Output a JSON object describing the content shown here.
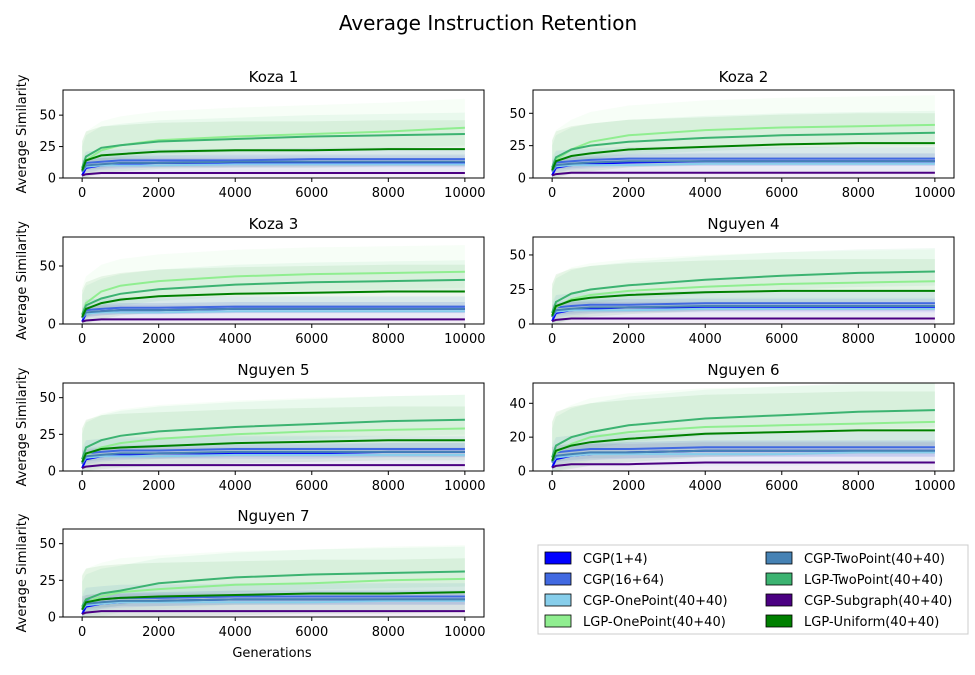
{
  "figure": {
    "title": "Average Instruction Retention",
    "xlabel": "Generations",
    "ylabel": "Average Similarity"
  },
  "legend": {
    "entries": [
      {
        "label": "CGP(1+4)",
        "color": "#0000ff"
      },
      {
        "label": "CGP-TwoPoint(40+40)",
        "color": "#4682b4"
      },
      {
        "label": "CGP(16+64)",
        "color": "#4169e1"
      },
      {
        "label": "LGP-TwoPoint(40+40)",
        "color": "#3cb371"
      },
      {
        "label": "CGP-OnePoint(40+40)",
        "color": "#87ceeb"
      },
      {
        "label": "CGP-Subgraph(40+40)",
        "color": "#4b0082"
      },
      {
        "label": "LGP-OnePoint(40+40)",
        "color": "#90ee90"
      },
      {
        "label": "LGP-Uniform(40+40)",
        "color": "#008000"
      }
    ]
  },
  "chart_data": [
    {
      "type": "line",
      "title": "Koza 1",
      "xlabel": "",
      "ylabel": "Average Similarity",
      "x": [
        0,
        100,
        500,
        1000,
        2000,
        4000,
        6000,
        8000,
        10000
      ],
      "xlim": [
        -500,
        10500
      ],
      "ylim": [
        0,
        70
      ],
      "xticks": [
        "0",
        "2000",
        "4000",
        "6000",
        "8000",
        "10000"
      ],
      "yticks": [
        0,
        25,
        50
      ],
      "series": [
        {
          "name": "CGP(1+4)",
          "color": "#0000ff",
          "values": [
            2,
            8,
            10,
            11,
            12,
            12,
            12,
            12,
            12
          ]
        },
        {
          "name": "CGP(16+64)",
          "color": "#4169e1",
          "values": [
            5,
            12,
            13,
            14,
            14,
            14,
            15,
            15,
            15
          ]
        },
        {
          "name": "CGP-OnePoint(40+40)",
          "color": "#87ceeb",
          "values": [
            5,
            9,
            10,
            10,
            10,
            11,
            11,
            11,
            11
          ]
        },
        {
          "name": "LGP-OnePoint(40+40)",
          "color": "#90ee90",
          "values": [
            7,
            14,
            22,
            26,
            30,
            33,
            35,
            37,
            40
          ]
        },
        {
          "name": "CGP-TwoPoint(40+40)",
          "color": "#4682b4",
          "values": [
            5,
            10,
            11,
            12,
            12,
            13,
            13,
            13,
            13
          ]
        },
        {
          "name": "LGP-TwoPoint(40+40)",
          "color": "#3cb371",
          "values": [
            8,
            17,
            24,
            26,
            29,
            31,
            33,
            34,
            35
          ]
        },
        {
          "name": "CGP-Subgraph(40+40)",
          "color": "#4b0082",
          "values": [
            2,
            3,
            4,
            4,
            4,
            4,
            4,
            4,
            4
          ]
        },
        {
          "name": "LGP-Uniform(40+40)",
          "color": "#008000",
          "values": [
            6,
            14,
            18,
            19,
            21,
            22,
            22,
            23,
            23
          ]
        }
      ]
    },
    {
      "type": "line",
      "title": "Koza 2",
      "xlabel": "",
      "ylabel": "",
      "x": [
        0,
        100,
        500,
        1000,
        2000,
        4000,
        6000,
        8000,
        10000
      ],
      "xlim": [
        -500,
        10500
      ],
      "ylim": [
        0,
        68
      ],
      "xticks": [
        "0",
        "2000",
        "4000",
        "6000",
        "8000",
        "10000"
      ],
      "yticks": [
        0,
        25,
        50
      ],
      "series": [
        {
          "name": "CGP(1+4)",
          "color": "#0000ff",
          "values": [
            2,
            8,
            10,
            11,
            12,
            13,
            13,
            13,
            13
          ]
        },
        {
          "name": "CGP(16+64)",
          "color": "#4169e1",
          "values": [
            5,
            12,
            13,
            14,
            15,
            15,
            15,
            15,
            15
          ]
        },
        {
          "name": "CGP-OnePoint(40+40)",
          "color": "#87ceeb",
          "values": [
            5,
            9,
            10,
            10,
            10,
            11,
            11,
            11,
            11
          ]
        },
        {
          "name": "LGP-OnePoint(40+40)",
          "color": "#90ee90",
          "values": [
            7,
            14,
            22,
            28,
            33,
            37,
            39,
            40,
            41
          ]
        },
        {
          "name": "CGP-TwoPoint(40+40)",
          "color": "#4682b4",
          "values": [
            5,
            10,
            11,
            12,
            13,
            13,
            13,
            13,
            13
          ]
        },
        {
          "name": "LGP-TwoPoint(40+40)",
          "color": "#3cb371",
          "values": [
            8,
            16,
            22,
            25,
            28,
            31,
            33,
            34,
            35
          ]
        },
        {
          "name": "CGP-Subgraph(40+40)",
          "color": "#4b0082",
          "values": [
            2,
            3,
            4,
            4,
            4,
            4,
            4,
            4,
            4
          ]
        },
        {
          "name": "LGP-Uniform(40+40)",
          "color": "#008000",
          "values": [
            6,
            13,
            17,
            19,
            22,
            24,
            26,
            27,
            27
          ]
        }
      ]
    },
    {
      "type": "line",
      "title": "Koza 3",
      "xlabel": "",
      "ylabel": "Average Similarity",
      "x": [
        0,
        100,
        500,
        1000,
        2000,
        4000,
        6000,
        8000,
        10000
      ],
      "xlim": [
        -500,
        10500
      ],
      "ylim": [
        0,
        75
      ],
      "xticks": [
        "0",
        "2000",
        "4000",
        "6000",
        "8000",
        "10000"
      ],
      "yticks": [
        0,
        50
      ],
      "series": [
        {
          "name": "CGP(1+4)",
          "color": "#0000ff",
          "values": [
            2,
            9,
            11,
            12,
            12,
            13,
            13,
            13,
            13
          ]
        },
        {
          "name": "CGP(16+64)",
          "color": "#4169e1",
          "values": [
            5,
            12,
            13,
            14,
            14,
            15,
            15,
            15,
            15
          ]
        },
        {
          "name": "CGP-OnePoint(40+40)",
          "color": "#87ceeb",
          "values": [
            5,
            9,
            10,
            10,
            10,
            11,
            11,
            11,
            11
          ]
        },
        {
          "name": "LGP-OnePoint(40+40)",
          "color": "#90ee90",
          "values": [
            8,
            18,
            28,
            33,
            37,
            41,
            43,
            44,
            45
          ]
        },
        {
          "name": "CGP-TwoPoint(40+40)",
          "color": "#4682b4",
          "values": [
            5,
            10,
            11,
            12,
            12,
            13,
            13,
            13,
            13
          ]
        },
        {
          "name": "LGP-TwoPoint(40+40)",
          "color": "#3cb371",
          "values": [
            8,
            16,
            22,
            26,
            30,
            34,
            36,
            37,
            38
          ]
        },
        {
          "name": "CGP-Subgraph(40+40)",
          "color": "#4b0082",
          "values": [
            2,
            3,
            4,
            4,
            4,
            4,
            4,
            4,
            4
          ]
        },
        {
          "name": "LGP-Uniform(40+40)",
          "color": "#008000",
          "values": [
            6,
            13,
            18,
            21,
            24,
            26,
            27,
            28,
            28
          ]
        }
      ]
    },
    {
      "type": "line",
      "title": "Nguyen 4",
      "xlabel": "",
      "ylabel": "",
      "x": [
        0,
        100,
        500,
        1000,
        2000,
        4000,
        6000,
        8000,
        10000
      ],
      "xlim": [
        -500,
        10500
      ],
      "ylim": [
        0,
        63
      ],
      "xticks": [
        "0",
        "2000",
        "4000",
        "6000",
        "8000",
        "10000"
      ],
      "yticks": [
        0,
        25,
        50
      ],
      "series": [
        {
          "name": "CGP(1+4)",
          "color": "#0000ff",
          "values": [
            2,
            8,
            10,
            11,
            12,
            12,
            12,
            12,
            12
          ]
        },
        {
          "name": "CGP(16+64)",
          "color": "#4169e1",
          "values": [
            5,
            12,
            13,
            14,
            14,
            15,
            15,
            15,
            15
          ]
        },
        {
          "name": "CGP-OnePoint(40+40)",
          "color": "#87ceeb",
          "values": [
            5,
            9,
            10,
            10,
            10,
            11,
            11,
            11,
            11
          ]
        },
        {
          "name": "LGP-OnePoint(40+40)",
          "color": "#90ee90",
          "values": [
            6,
            12,
            18,
            21,
            24,
            27,
            29,
            30,
            31
          ]
        },
        {
          "name": "CGP-TwoPoint(40+40)",
          "color": "#4682b4",
          "values": [
            5,
            10,
            11,
            12,
            12,
            13,
            13,
            13,
            13
          ]
        },
        {
          "name": "LGP-TwoPoint(40+40)",
          "color": "#3cb371",
          "values": [
            8,
            16,
            22,
            25,
            28,
            32,
            35,
            37,
            38
          ]
        },
        {
          "name": "CGP-Subgraph(40+40)",
          "color": "#4b0082",
          "values": [
            2,
            3,
            4,
            4,
            4,
            4,
            4,
            4,
            4
          ]
        },
        {
          "name": "LGP-Uniform(40+40)",
          "color": "#008000",
          "values": [
            6,
            13,
            17,
            19,
            21,
            23,
            24,
            24,
            24
          ]
        }
      ]
    },
    {
      "type": "line",
      "title": "Nguyen 5",
      "xlabel": "",
      "ylabel": "Average Similarity",
      "x": [
        0,
        100,
        500,
        1000,
        2000,
        4000,
        6000,
        8000,
        10000
      ],
      "xlim": [
        -500,
        10500
      ],
      "ylim": [
        0,
        60
      ],
      "xticks": [
        "0",
        "2000",
        "4000",
        "6000",
        "8000",
        "10000"
      ],
      "yticks": [
        0,
        25,
        50
      ],
      "series": [
        {
          "name": "CGP(1+4)",
          "color": "#0000ff",
          "values": [
            2,
            8,
            10,
            11,
            12,
            12,
            12,
            13,
            13
          ]
        },
        {
          "name": "CGP(16+64)",
          "color": "#4169e1",
          "values": [
            5,
            12,
            13,
            14,
            14,
            15,
            15,
            15,
            15
          ]
        },
        {
          "name": "CGP-OnePoint(40+40)",
          "color": "#87ceeb",
          "values": [
            5,
            9,
            10,
            10,
            10,
            11,
            11,
            11,
            11
          ]
        },
        {
          "name": "LGP-OnePoint(40+40)",
          "color": "#90ee90",
          "values": [
            6,
            11,
            16,
            19,
            22,
            25,
            27,
            28,
            29
          ]
        },
        {
          "name": "CGP-TwoPoint(40+40)",
          "color": "#4682b4",
          "values": [
            5,
            10,
            11,
            12,
            12,
            13,
            13,
            13,
            13
          ]
        },
        {
          "name": "LGP-TwoPoint(40+40)",
          "color": "#3cb371",
          "values": [
            8,
            16,
            21,
            24,
            27,
            30,
            32,
            34,
            35
          ]
        },
        {
          "name": "CGP-Subgraph(40+40)",
          "color": "#4b0082",
          "values": [
            2,
            3,
            4,
            4,
            4,
            4,
            4,
            4,
            4
          ]
        },
        {
          "name": "LGP-Uniform(40+40)",
          "color": "#008000",
          "values": [
            6,
            12,
            15,
            16,
            17,
            19,
            20,
            21,
            21
          ]
        }
      ]
    },
    {
      "type": "line",
      "title": "Nguyen 6",
      "xlabel": "",
      "ylabel": "",
      "x": [
        0,
        100,
        500,
        1000,
        2000,
        4000,
        6000,
        8000,
        10000
      ],
      "xlim": [
        -500,
        10500
      ],
      "ylim": [
        0,
        52
      ],
      "xticks": [
        "0",
        "2000",
        "4000",
        "6000",
        "8000",
        "10000"
      ],
      "yticks": [
        0,
        20,
        40
      ],
      "series": [
        {
          "name": "CGP(1+4)",
          "color": "#0000ff",
          "values": [
            2,
            7,
            9,
            10,
            11,
            12,
            12,
            12,
            12
          ]
        },
        {
          "name": "CGP(16+64)",
          "color": "#4169e1",
          "values": [
            5,
            11,
            12,
            13,
            13,
            14,
            14,
            14,
            14
          ]
        },
        {
          "name": "CGP-OnePoint(40+40)",
          "color": "#87ceeb",
          "values": [
            5,
            8,
            9,
            10,
            10,
            10,
            10,
            11,
            11
          ]
        },
        {
          "name": "LGP-OnePoint(40+40)",
          "color": "#90ee90",
          "values": [
            6,
            11,
            16,
            20,
            23,
            26,
            27,
            28,
            29
          ]
        },
        {
          "name": "CGP-TwoPoint(40+40)",
          "color": "#4682b4",
          "values": [
            5,
            9,
            10,
            11,
            11,
            12,
            12,
            12,
            12
          ]
        },
        {
          "name": "LGP-TwoPoint(40+40)",
          "color": "#3cb371",
          "values": [
            8,
            15,
            20,
            23,
            27,
            31,
            33,
            35,
            36
          ]
        },
        {
          "name": "CGP-Subgraph(40+40)",
          "color": "#4b0082",
          "values": [
            2,
            3,
            4,
            4,
            4,
            5,
            5,
            5,
            5
          ]
        },
        {
          "name": "LGP-Uniform(40+40)",
          "color": "#008000",
          "values": [
            6,
            12,
            15,
            17,
            19,
            22,
            23,
            24,
            24
          ]
        }
      ]
    },
    {
      "type": "line",
      "title": "Nguyen 7",
      "xlabel": "Generations",
      "ylabel": "Average Similarity",
      "x": [
        0,
        100,
        500,
        1000,
        2000,
        4000,
        6000,
        8000,
        10000
      ],
      "xlim": [
        -500,
        10500
      ],
      "ylim": [
        0,
        60
      ],
      "xticks": [
        "0",
        "2000",
        "4000",
        "6000",
        "8000",
        "10000"
      ],
      "yticks": [
        0,
        25,
        50
      ],
      "series": [
        {
          "name": "CGP(1+4)",
          "color": "#0000ff",
          "values": [
            2,
            7,
            9,
            10,
            11,
            12,
            12,
            12,
            12
          ]
        },
        {
          "name": "CGP(16+64)",
          "color": "#4169e1",
          "values": [
            5,
            11,
            12,
            13,
            13,
            14,
            14,
            14,
            14
          ]
        },
        {
          "name": "CGP-OnePoint(40+40)",
          "color": "#87ceeb",
          "values": [
            5,
            8,
            9,
            10,
            10,
            10,
            10,
            11,
            11
          ]
        },
        {
          "name": "LGP-OnePoint(40+40)",
          "color": "#90ee90",
          "values": [
            6,
            10,
            14,
            17,
            19,
            22,
            23,
            25,
            26
          ]
        },
        {
          "name": "CGP-TwoPoint(40+40)",
          "color": "#4682b4",
          "values": [
            5,
            9,
            10,
            11,
            11,
            12,
            12,
            12,
            12
          ]
        },
        {
          "name": "LGP-TwoPoint(40+40)",
          "color": "#3cb371",
          "values": [
            7,
            12,
            16,
            18,
            23,
            27,
            29,
            30,
            31
          ]
        },
        {
          "name": "CGP-Subgraph(40+40)",
          "color": "#4b0082",
          "values": [
            2,
            3,
            4,
            4,
            4,
            4,
            4,
            4,
            4
          ]
        },
        {
          "name": "LGP-Uniform(40+40)",
          "color": "#008000",
          "values": [
            5,
            10,
            12,
            13,
            14,
            15,
            16,
            16,
            17
          ]
        }
      ]
    }
  ]
}
